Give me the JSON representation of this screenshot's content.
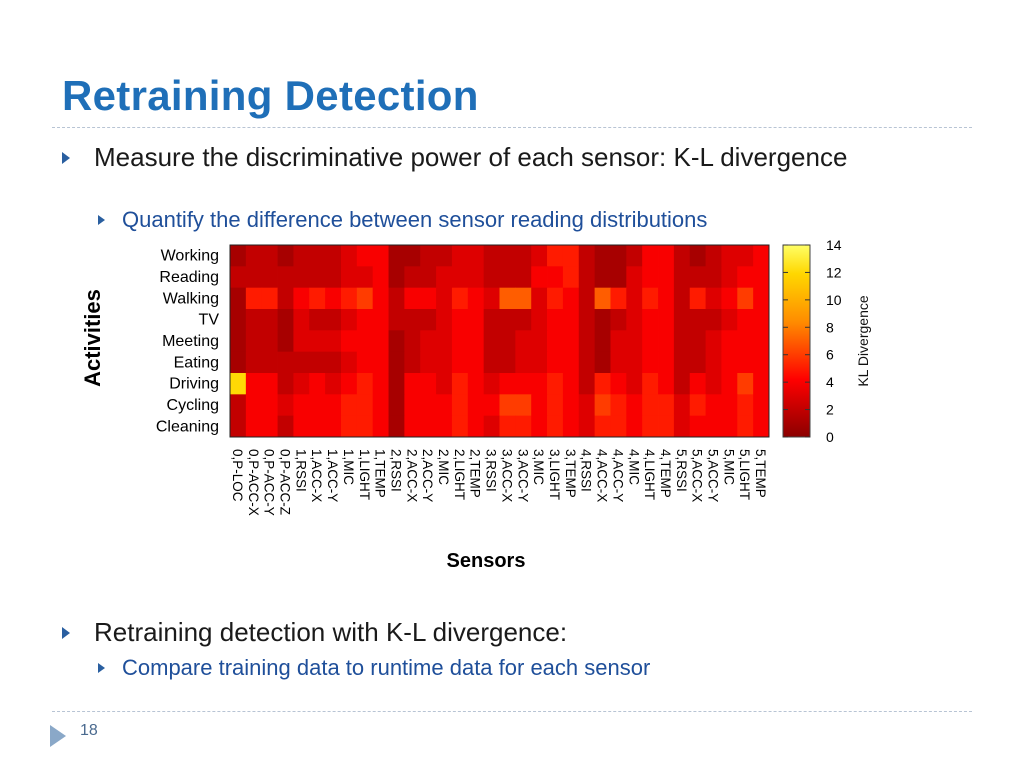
{
  "slide": {
    "title": "Retraining Detection",
    "bullets": [
      {
        "text": "Measure the discriminative power of each sensor: K-L divergence",
        "sub": "Quantify the difference between sensor reading distributions"
      },
      {
        "text": "Retraining detection with K-L divergence:",
        "sub": "Compare training data to runtime data for each sensor"
      }
    ],
    "page_number": "18"
  },
  "colors": {
    "title": "#1f6fb8",
    "bullet_arrow": "#2a5fa0",
    "sub_bullet_text": "#1f4f9a",
    "divider": "#b8c4d4"
  },
  "chart_data": {
    "type": "heatmap",
    "xlabel": "Sensors",
    "ylabel": "Activities",
    "colorbar_label": "KL Divergence",
    "colorbar_ticks": [
      0,
      2,
      4,
      6,
      8,
      10,
      12,
      14
    ],
    "vmin": 0,
    "vmax": 14,
    "colormap": [
      "#8b0000",
      "#ff0000",
      "#ff8c00",
      "#ffd700",
      "#ffff66"
    ],
    "rows": [
      "Working",
      "Reading",
      "Walking",
      "TV",
      "Meeting",
      "Eating",
      "Driving",
      "Cycling",
      "Cleaning"
    ],
    "columns": [
      "0,P-LOC",
      "0,P-ACC-X",
      "0,P-ACC-Y",
      "0,P-ACC-Z",
      "1,RSSI",
      "1,ACC-X",
      "1,ACC-Y",
      "1,MIC",
      "1,LIGHT",
      "1,TEMP",
      "2,RSSI",
      "2,ACC-X",
      "2,ACC-Y",
      "2,MIC",
      "2,LIGHT",
      "2,TEMP",
      "3,RSSI",
      "3,ACC-X",
      "3,ACC-Y",
      "3,MIC",
      "3,LIGHT",
      "3,TEMP",
      "4,RSSI",
      "4,ACC-X",
      "4,ACC-Y",
      "4,MIC",
      "4,LIGHT",
      "4,TEMP",
      "5,RSSI",
      "5,ACC-X",
      "5,ACC-Y",
      "5,MIC",
      "5,LIGHT",
      "5,TEMP"
    ],
    "values": [
      [
        1,
        2,
        2,
        1,
        2,
        2,
        2,
        3,
        4,
        4,
        1,
        1,
        2,
        2,
        3,
        3,
        2,
        2,
        2,
        3,
        5,
        5,
        2,
        1,
        1,
        2,
        4,
        4,
        2,
        1,
        2,
        3,
        3,
        4
      ],
      [
        2,
        2,
        2,
        2,
        2,
        2,
        2,
        3,
        3,
        4,
        1,
        2,
        2,
        3,
        3,
        3,
        2,
        2,
        2,
        4,
        4,
        5,
        2,
        1,
        1,
        3,
        4,
        4,
        2,
        2,
        2,
        3,
        4,
        4
      ],
      [
        1,
        5,
        5,
        2,
        4,
        5,
        4,
        5,
        6,
        4,
        2,
        4,
        4,
        3,
        5,
        4,
        3,
        7,
        7,
        3,
        5,
        4,
        2,
        7,
        5,
        3,
        5,
        4,
        2,
        5,
        3,
        4,
        6,
        4
      ],
      [
        1,
        2,
        2,
        1,
        3,
        2,
        2,
        3,
        4,
        4,
        2,
        2,
        2,
        3,
        4,
        4,
        2,
        2,
        2,
        3,
        4,
        4,
        2,
        1,
        2,
        3,
        4,
        4,
        2,
        2,
        2,
        3,
        4,
        4
      ],
      [
        1,
        2,
        2,
        1,
        3,
        3,
        3,
        4,
        4,
        4,
        1,
        2,
        3,
        3,
        4,
        4,
        2,
        2,
        3,
        3,
        4,
        4,
        2,
        1,
        3,
        3,
        4,
        4,
        2,
        2,
        3,
        4,
        4,
        4
      ],
      [
        1,
        2,
        2,
        2,
        2,
        2,
        2,
        3,
        4,
        4,
        1,
        2,
        3,
        3,
        4,
        4,
        2,
        2,
        3,
        3,
        4,
        4,
        2,
        1,
        3,
        3,
        4,
        4,
        2,
        2,
        3,
        4,
        4,
        4
      ],
      [
        12,
        4,
        4,
        2,
        3,
        4,
        3,
        4,
        5,
        4,
        1,
        4,
        4,
        3,
        5,
        4,
        3,
        4,
        4,
        4,
        5,
        4,
        2,
        5,
        4,
        3,
        5,
        4,
        2,
        4,
        3,
        4,
        6,
        4
      ],
      [
        2,
        4,
        4,
        3,
        4,
        4,
        4,
        5,
        5,
        4,
        1,
        4,
        4,
        4,
        5,
        4,
        4,
        6,
        6,
        4,
        5,
        4,
        3,
        6,
        5,
        4,
        5,
        5,
        3,
        5,
        4,
        4,
        5,
        4
      ],
      [
        2,
        4,
        4,
        2,
        4,
        4,
        4,
        5,
        5,
        4,
        1,
        4,
        4,
        4,
        5,
        4,
        3,
        5,
        5,
        4,
        5,
        4,
        3,
        5,
        5,
        4,
        5,
        5,
        3,
        4,
        4,
        4,
        5,
        4
      ]
    ]
  }
}
